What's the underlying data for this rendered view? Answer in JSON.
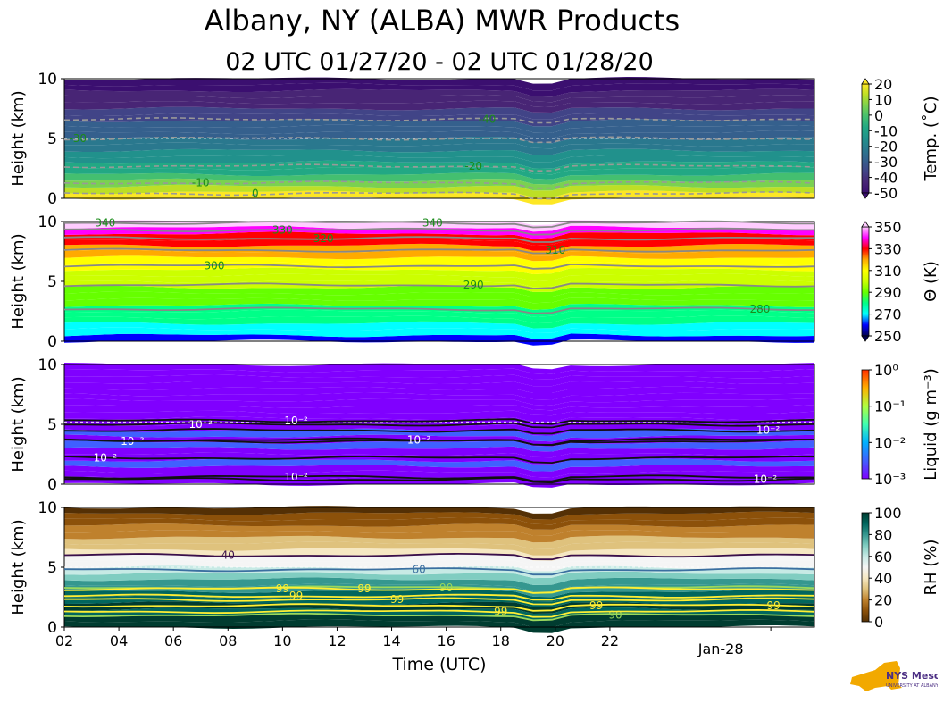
{
  "title": "Albany, NY (ALBA) MWR Products",
  "subtitle": "02 UTC 01/27/20 - 02 UTC 01/28/20",
  "xlabel": "Time (UTC)",
  "logo": {
    "brand": "NYS Mesonet",
    "sub": "UNIVERSITY AT ALBANY"
  },
  "chart_data": [
    {
      "type": "heatmap",
      "name": "Temperature",
      "ylabel": "Height (km)",
      "ylim": [
        0,
        10
      ],
      "yticks": [
        "0",
        "5",
        "10"
      ],
      "xlim": [
        2,
        29.5
      ],
      "xticks": [
        2,
        4,
        6,
        8,
        10,
        12,
        14,
        16,
        18,
        20,
        22
      ],
      "xtick_labels": [
        "02",
        "04",
        "06",
        "08",
        "10",
        "12",
        "14",
        "16",
        "18",
        "20",
        "22"
      ],
      "extra_xtick": {
        "x": 27.9,
        "label": "Jan-28"
      },
      "colorbar": {
        "label": "Temp. (˚C)",
        "scale": "linear",
        "range": [
          -50,
          20
        ],
        "ticks": [
          "20",
          "10",
          "0",
          "-10",
          "-20",
          "-30",
          "-40",
          "-50"
        ],
        "colors": [
          "#3b0f70",
          "#482575",
          "#414487",
          "#35608d",
          "#2a788e",
          "#21918c",
          "#22a884",
          "#44bf70",
          "#7ad151",
          "#bddf26",
          "#fde725"
        ]
      },
      "contours": [
        {
          "label": "0",
          "height": 0.4,
          "x": 9.0
        },
        {
          "label": "-10",
          "height": 1.3,
          "x": 7.0
        },
        {
          "label": "-20",
          "height": 2.7,
          "x": 17.0
        },
        {
          "label": "-30",
          "height": 5.0,
          "x": 2.5
        },
        {
          "label": "-40",
          "height": 6.6,
          "x": 17.5
        }
      ],
      "dashed_line_height": 5.0
    },
    {
      "type": "heatmap",
      "name": "Theta",
      "ylabel": "Height (km)",
      "ylim": [
        0,
        10
      ],
      "yticks": [
        "0",
        "5",
        "10"
      ],
      "colorbar": {
        "label": "Θ (K)",
        "scale": "linear",
        "range": [
          250,
          360
        ],
        "ticks": [
          "350",
          "330",
          "310",
          "290",
          "270",
          "250"
        ],
        "colors": [
          "#000050",
          "#0000ff",
          "#00ffff",
          "#00ff88",
          "#66ff00",
          "#ccff00",
          "#ffff00",
          "#ffaa00",
          "#ff0000",
          "#ff00ff",
          "#ffccff"
        ]
      },
      "contours": [
        {
          "label": "280",
          "height": 2.7,
          "x": 27.5
        },
        {
          "label": "290",
          "height": 4.7,
          "x": 17.0
        },
        {
          "label": "300",
          "height": 6.3,
          "x": 7.5
        },
        {
          "label": "310",
          "height": 7.6,
          "x": 20.0
        },
        {
          "label": "320",
          "height": 8.6,
          "x": 11.5
        },
        {
          "label": "330",
          "height": 9.3,
          "x": 10.0
        },
        {
          "label": "340",
          "height": 9.9,
          "x": 3.5
        },
        {
          "label": "340",
          "height": 9.9,
          "x": 15.5
        }
      ]
    },
    {
      "type": "heatmap",
      "name": "Liquid",
      "ylabel": "Height (km)",
      "ylim": [
        0,
        10
      ],
      "yticks": [
        "0",
        "5",
        "10"
      ],
      "colorbar": {
        "label": "Liquid (g m⁻³)",
        "scale": "log",
        "range": [
          0.001,
          1
        ],
        "ticks": [
          "10⁰",
          "10⁻¹",
          "10⁻²",
          "10⁻³"
        ],
        "colors": [
          "#8000ff",
          "#4060ff",
          "#00b0ff",
          "#40ffb0",
          "#b0ff40",
          "#ffb000",
          "#ff3000"
        ]
      },
      "contours": [
        {
          "label": "10⁻²",
          "height": 5.0,
          "x": 7.0
        },
        {
          "label": "10⁻²",
          "height": 5.3,
          "x": 10.5
        },
        {
          "label": "10⁻²",
          "height": 3.6,
          "x": 4.5
        },
        {
          "label": "10⁻²",
          "height": 2.2,
          "x": 3.5
        },
        {
          "label": "10⁻²",
          "height": 3.7,
          "x": 15.0
        },
        {
          "label": "10⁻²",
          "height": 0.6,
          "x": 10.5
        },
        {
          "label": "10⁻²",
          "height": 4.5,
          "x": 27.8
        },
        {
          "label": "10⁻²",
          "height": 0.4,
          "x": 27.7
        }
      ],
      "dashed_line_height": 5.2
    },
    {
      "type": "heatmap",
      "name": "RH",
      "ylabel": "Height (km)",
      "ylim": [
        0,
        10
      ],
      "yticks": [
        "0",
        "5",
        "10"
      ],
      "colorbar": {
        "label": "RH (%)",
        "scale": "linear",
        "range": [
          0,
          105
        ],
        "ticks": [
          "100",
          "80",
          "60",
          "40",
          "20",
          "0"
        ],
        "colors": [
          "#543005",
          "#8c510a",
          "#bf812d",
          "#dfc27d",
          "#f6e8c3",
          "#f5f5f5",
          "#c7eae5",
          "#80cdc1",
          "#35978f",
          "#01665e",
          "#003c30"
        ]
      },
      "contours": [
        {
          "label": "40",
          "height": 6.0,
          "x": 8.0
        },
        {
          "label": "60",
          "height": 4.8,
          "x": 15.0
        },
        {
          "label": "90",
          "height": 3.3,
          "x": 16.0
        },
        {
          "label": "90",
          "height": 1.0,
          "x": 22.2
        },
        {
          "label": "99",
          "height": 3.2,
          "x": 10.0
        },
        {
          "label": "99",
          "height": 3.2,
          "x": 13.0
        },
        {
          "label": "99",
          "height": 2.6,
          "x": 10.5
        },
        {
          "label": "99",
          "height": 2.3,
          "x": 14.2
        },
        {
          "label": "99",
          "height": 1.3,
          "x": 18.0
        },
        {
          "label": "99",
          "height": 1.8,
          "x": 21.5
        },
        {
          "label": "99",
          "height": 1.8,
          "x": 28.0
        }
      ],
      "dashed_line_height": 5.0
    }
  ]
}
